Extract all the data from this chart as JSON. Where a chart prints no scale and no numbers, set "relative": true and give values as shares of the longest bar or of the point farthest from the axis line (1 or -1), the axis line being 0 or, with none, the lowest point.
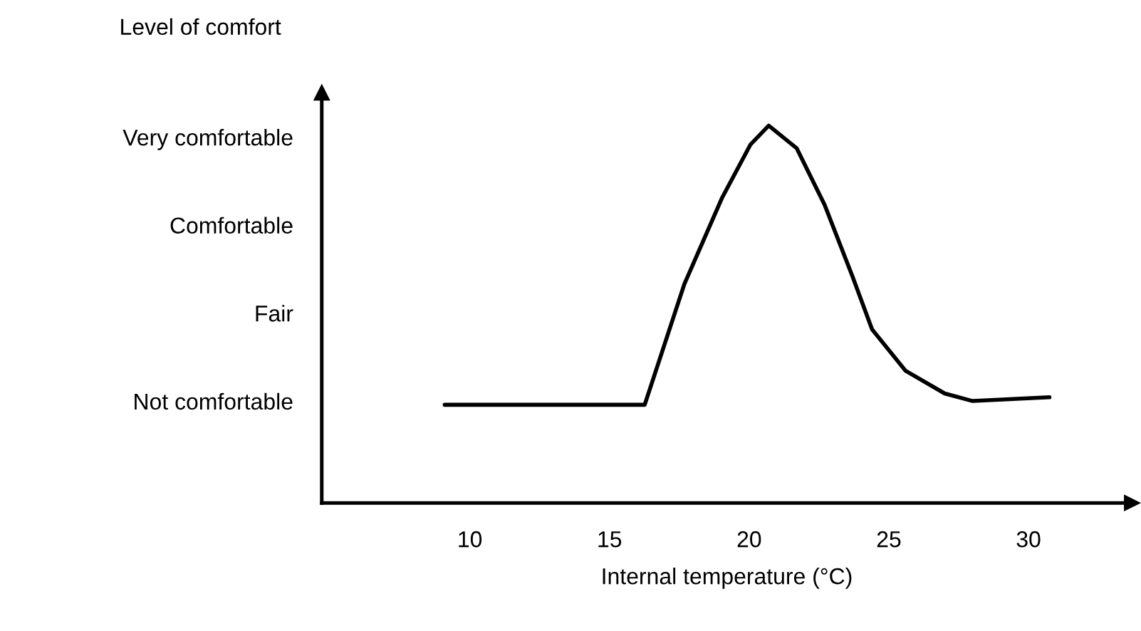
{
  "chart_data": {
    "type": "line",
    "xlabel": "Internal temperature (°C)",
    "ylabel": "Level of comfort",
    "relative": true,
    "series": [
      {
        "color": "#000000",
        "x": [
          9.1,
          16.26,
          17.68,
          19.04,
          20.05,
          20.7,
          21.7,
          22.7,
          23.7,
          24.4,
          25.6,
          27.0,
          28.0,
          30.75
        ],
        "values": [
          0.26,
          0.26,
          0.58,
          0.81,
          0.95,
          1.0,
          0.94,
          0.79,
          0.6,
          0.46,
          0.35,
          0.29,
          0.27,
          0.28
        ]
      }
    ],
    "xlim": [
      4.7,
      33.7
    ],
    "xticks": [
      10,
      15,
      20,
      25,
      30
    ],
    "annotations": [
      "Very comfortable",
      "Comfortable",
      "Fair",
      "Not comfortable"
    ],
    "grid": false,
    "legend": false,
    "marker": "none",
    "line_style": "solid"
  }
}
